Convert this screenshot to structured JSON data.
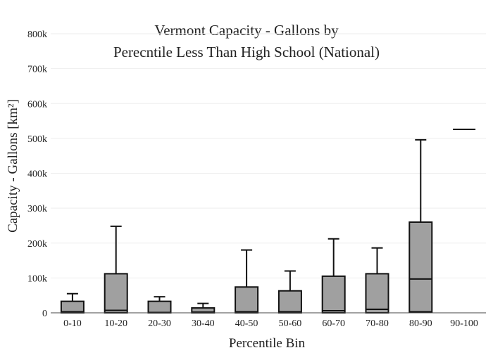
{
  "chart_data": {
    "type": "box",
    "title_lines": [
      "Vermont Capacity - Gallons by",
      "Perecntile Less Than High School (National)"
    ],
    "xlabel": "Percentile Bin",
    "ylabel": "Capacity - Gallons  [km²]",
    "ylim": [
      0,
      800000
    ],
    "yticks": [
      {
        "value": 0,
        "label": "0"
      },
      {
        "value": 100000,
        "label": "100k"
      },
      {
        "value": 200000,
        "label": "200k"
      },
      {
        "value": 300000,
        "label": "300k"
      },
      {
        "value": 400000,
        "label": "400k"
      },
      {
        "value": 500000,
        "label": "500k"
      },
      {
        "value": 600000,
        "label": "600k"
      },
      {
        "value": 700000,
        "label": "700k"
      },
      {
        "value": 800000,
        "label": "800k"
      }
    ],
    "grid": true,
    "categories": [
      "0-10",
      "10-20",
      "20-30",
      "30-40",
      "40-50",
      "50-60",
      "60-70",
      "70-80",
      "80-90",
      "90-100"
    ],
    "boxes": [
      {
        "category": "0-10",
        "min": 0,
        "q1": 0,
        "median": 3000,
        "q3": 33000,
        "max": 55000
      },
      {
        "category": "10-20",
        "min": 0,
        "q1": 0,
        "median": 7000,
        "q3": 112000,
        "max": 248000
      },
      {
        "category": "20-30",
        "min": 0,
        "q1": 0,
        "median": 1000,
        "q3": 33000,
        "max": 46000
      },
      {
        "category": "30-40",
        "min": 0,
        "q1": 0,
        "median": 2000,
        "q3": 14000,
        "max": 27000
      },
      {
        "category": "40-50",
        "min": 0,
        "q1": 0,
        "median": 3000,
        "q3": 74000,
        "max": 180000
      },
      {
        "category": "50-60",
        "min": 0,
        "q1": 0,
        "median": 3000,
        "q3": 63000,
        "max": 120000
      },
      {
        "category": "60-70",
        "min": 0,
        "q1": 0,
        "median": 6000,
        "q3": 105000,
        "max": 212000
      },
      {
        "category": "70-80",
        "min": 0,
        "q1": 0,
        "median": 10000,
        "q3": 112000,
        "max": 186000
      },
      {
        "category": "80-90",
        "min": 0,
        "q1": 3000,
        "median": 97000,
        "q3": 260000,
        "max": 496000
      },
      {
        "category": "90-100",
        "min": 526000,
        "q1": 526000,
        "median": 526000,
        "q3": 526000,
        "max": 526000
      }
    ],
    "colors": {
      "box_fill": "#a0a0a0",
      "box_stroke": "#111111",
      "grid": "#eeeeee",
      "axis": "#444444"
    }
  }
}
